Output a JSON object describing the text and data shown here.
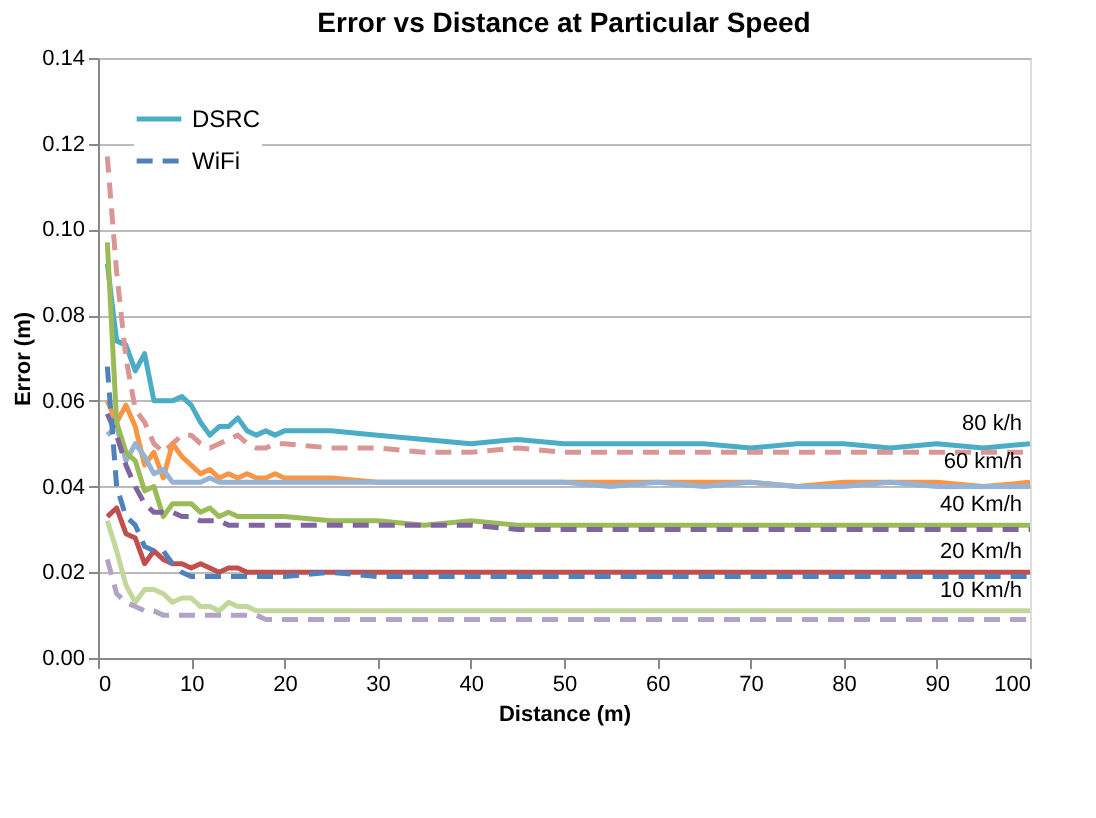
{
  "chart_data": {
    "type": "line",
    "title": "Error vs Distance at Particular Speed",
    "xlabel": "Distance (m)",
    "ylabel": "Error (m)",
    "x": [
      1,
      2,
      3,
      4,
      5,
      6,
      7,
      8,
      9,
      10,
      11,
      12,
      13,
      14,
      15,
      16,
      17,
      18,
      19,
      20,
      25,
      30,
      35,
      40,
      45,
      50,
      55,
      60,
      65,
      70,
      75,
      80,
      85,
      90,
      95,
      100
    ],
    "xlim": [
      0,
      100
    ],
    "xticks": [
      0,
      10,
      20,
      30,
      40,
      50,
      60,
      70,
      80,
      90,
      100
    ],
    "ylim": [
      0,
      0.14
    ],
    "yticks": [
      {
        "value": 0,
        "label": "0.00"
      },
      {
        "value": 0.02,
        "label": "0.02"
      },
      {
        "value": 0.04,
        "label": "0.04"
      },
      {
        "value": 0.06,
        "label": "0.06"
      },
      {
        "value": 0.08,
        "label": "0.08"
      },
      {
        "value": 0.1,
        "label": "0.10"
      },
      {
        "value": 0.12,
        "label": "0.12"
      },
      {
        "value": 0.14,
        "label": "0.14"
      }
    ],
    "grid": "y",
    "legend": "top left",
    "marker": "none",
    "series": [
      {
        "name": "DSRC",
        "color": "#4bacc6",
        "line_style": "solid",
        "values": [
          0.092,
          0.074,
          0.073,
          0.067,
          0.071,
          0.06,
          0.06,
          0.06,
          0.061,
          0.059,
          0.055,
          0.052,
          0.054,
          0.054,
          0.056,
          0.053,
          0.052,
          0.053,
          0.052,
          0.053,
          0.053,
          0.052,
          0.051,
          0.05,
          0.051,
          0.05,
          0.05,
          0.05,
          0.05,
          0.049,
          0.05,
          0.05,
          0.049,
          0.05,
          0.049,
          0.05
        ]
      },
      {
        "color": "#d99694",
        "line_style": "dashed",
        "values": [
          0.117,
          0.09,
          0.07,
          0.058,
          0.055,
          0.05,
          0.048,
          0.05,
          0.052,
          0.052,
          0.05,
          0.049,
          0.05,
          0.051,
          0.052,
          0.05,
          0.049,
          0.049,
          0.05,
          0.05,
          0.049,
          0.049,
          0.048,
          0.048,
          0.049,
          0.048,
          0.048,
          0.048,
          0.048,
          0.048,
          0.048,
          0.048,
          0.048,
          0.048,
          0.048,
          0.048
        ]
      },
      {
        "color": "#f79646",
        "line_style": "solid",
        "values": [
          0.06,
          0.055,
          0.059,
          0.054,
          0.045,
          0.048,
          0.042,
          0.05,
          0.047,
          0.045,
          0.043,
          0.044,
          0.042,
          0.043,
          0.042,
          0.043,
          0.042,
          0.042,
          0.043,
          0.042,
          0.042,
          0.041,
          0.041,
          0.041,
          0.041,
          0.041,
          0.041,
          0.041,
          0.041,
          0.041,
          0.04,
          0.041,
          0.041,
          0.041,
          0.04,
          0.041
        ]
      },
      {
        "color": "#95b3d7",
        "line_style": "solid",
        "values": [
          0.052,
          0.054,
          0.046,
          0.05,
          0.047,
          0.043,
          0.044,
          0.041,
          0.041,
          0.041,
          0.041,
          0.042,
          0.041,
          0.041,
          0.041,
          0.041,
          0.041,
          0.041,
          0.041,
          0.041,
          0.041,
          0.041,
          0.041,
          0.041,
          0.041,
          0.041,
          0.04,
          0.041,
          0.04,
          0.041,
          0.04,
          0.04,
          0.041,
          0.04,
          0.04,
          0.04
        ]
      },
      {
        "color": "#9bbb59",
        "line_style": "solid",
        "values": [
          0.097,
          0.055,
          0.048,
          0.046,
          0.039,
          0.04,
          0.033,
          0.036,
          0.036,
          0.036,
          0.034,
          0.035,
          0.033,
          0.034,
          0.033,
          0.033,
          0.033,
          0.033,
          0.033,
          0.033,
          0.032,
          0.032,
          0.031,
          0.032,
          0.031,
          0.031,
          0.031,
          0.031,
          0.031,
          0.031,
          0.031,
          0.031,
          0.031,
          0.031,
          0.031,
          0.031
        ]
      },
      {
        "color": "#8064a2",
        "line_style": "dashed",
        "values": [
          0.057,
          0.052,
          0.045,
          0.04,
          0.036,
          0.034,
          0.034,
          0.034,
          0.033,
          0.033,
          0.032,
          0.032,
          0.032,
          0.031,
          0.031,
          0.031,
          0.031,
          0.031,
          0.031,
          0.031,
          0.031,
          0.031,
          0.031,
          0.031,
          0.03,
          0.03,
          0.03,
          0.03,
          0.03,
          0.03,
          0.03,
          0.03,
          0.03,
          0.03,
          0.03,
          0.03
        ]
      },
      {
        "color": "#c0504d",
        "line_style": "solid",
        "values": [
          0.033,
          0.035,
          0.029,
          0.028,
          0.022,
          0.025,
          0.023,
          0.022,
          0.022,
          0.021,
          0.022,
          0.021,
          0.02,
          0.021,
          0.021,
          0.02,
          0.02,
          0.02,
          0.02,
          0.02,
          0.02,
          0.02,
          0.02,
          0.02,
          0.02,
          0.02,
          0.02,
          0.02,
          0.02,
          0.02,
          0.02,
          0.02,
          0.02,
          0.02,
          0.02,
          0.02
        ]
      },
      {
        "name": "WiFi",
        "color": "#4f81bd",
        "line_style": "dashed",
        "values": [
          0.068,
          0.04,
          0.033,
          0.031,
          0.026,
          0.025,
          0.025,
          0.022,
          0.02,
          0.019,
          0.019,
          0.019,
          0.019,
          0.019,
          0.019,
          0.019,
          0.019,
          0.019,
          0.019,
          0.019,
          0.02,
          0.019,
          0.019,
          0.019,
          0.019,
          0.019,
          0.019,
          0.019,
          0.019,
          0.019,
          0.019,
          0.019,
          0.019,
          0.019,
          0.019,
          0.019
        ]
      },
      {
        "color": "#c3d69b",
        "line_style": "solid",
        "values": [
          0.032,
          0.025,
          0.017,
          0.013,
          0.016,
          0.016,
          0.015,
          0.013,
          0.014,
          0.014,
          0.012,
          0.012,
          0.011,
          0.013,
          0.012,
          0.012,
          0.011,
          0.011,
          0.011,
          0.011,
          0.011,
          0.011,
          0.011,
          0.011,
          0.011,
          0.011,
          0.011,
          0.011,
          0.011,
          0.011,
          0.011,
          0.011,
          0.011,
          0.011,
          0.011,
          0.011
        ]
      },
      {
        "color": "#b3a2c7",
        "line_style": "dashed",
        "values": [
          0.023,
          0.015,
          0.013,
          0.012,
          0.011,
          0.011,
          0.01,
          0.01,
          0.01,
          0.01,
          0.01,
          0.01,
          0.01,
          0.01,
          0.01,
          0.01,
          0.01,
          0.009,
          0.009,
          0.009,
          0.009,
          0.009,
          0.009,
          0.009,
          0.009,
          0.009,
          0.009,
          0.009,
          0.009,
          0.009,
          0.009,
          0.009,
          0.009,
          0.009,
          0.009,
          0.009
        ]
      }
    ],
    "annotations": [
      "80 k/h",
      "60 km/h",
      "40 Km/h",
      "20 Km/h",
      "10 Km/h"
    ]
  }
}
